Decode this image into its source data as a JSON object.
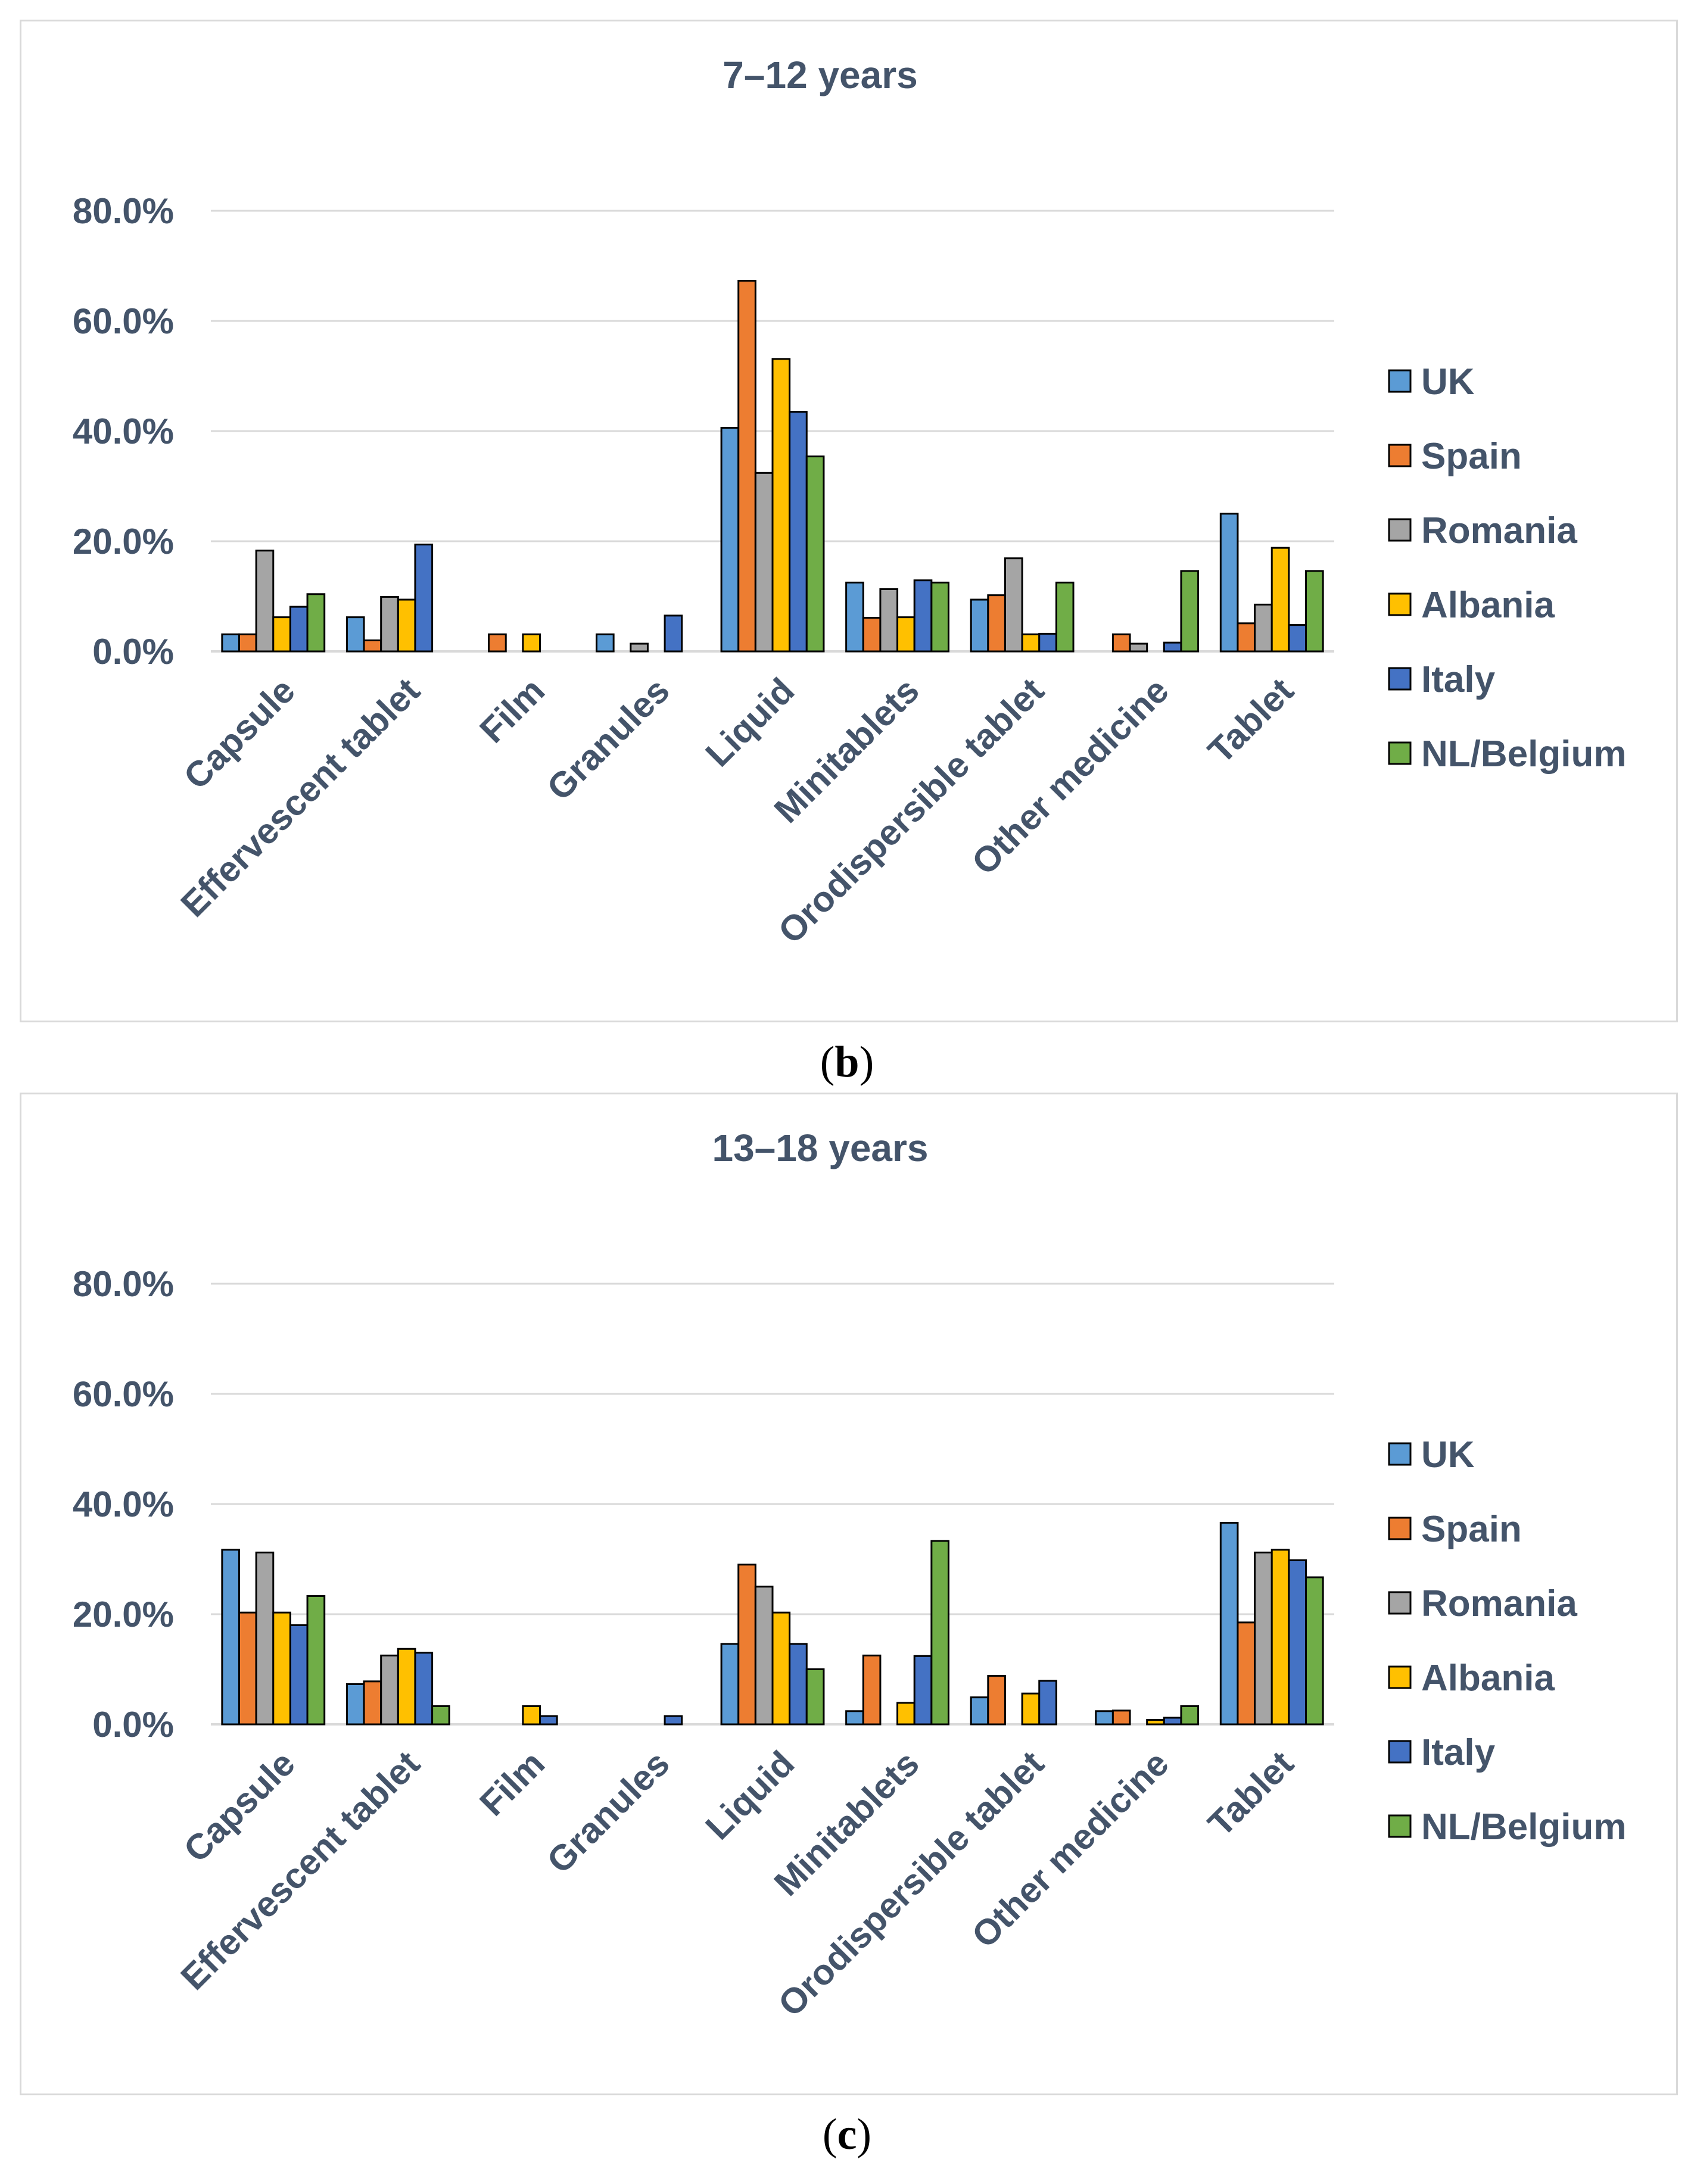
{
  "captions": {
    "b": {
      "open": "(",
      "letter": "b",
      "close": ")"
    },
    "c": {
      "open": "(",
      "letter": "c",
      "close": ")"
    }
  },
  "colors": {
    "text": "#44546a",
    "grid": "#d9d9d9",
    "border": "#000000",
    "series": [
      "#5b9bd5",
      "#ed7d31",
      "#a5a5a5",
      "#ffc000",
      "#4472c4",
      "#70ad47"
    ]
  },
  "chart_data": [
    {
      "type": "bar",
      "title": "7–12 years",
      "xlabel": "",
      "ylabel": "",
      "ylim": [
        0,
        0.8
      ],
      "yticks": [
        0,
        0.2,
        0.4,
        0.6,
        0.8
      ],
      "ytick_labels": [
        "0.0%",
        "20.0%",
        "40.0%",
        "60.0%",
        "80.0%"
      ],
      "grid": true,
      "legend_position": "right",
      "categories": [
        "Capsule",
        "Effervescent tablet",
        "Film",
        "Granules",
        "Liquid",
        "Minitablets",
        "Orodispersible tablet",
        "Other medicine",
        "Tablet"
      ],
      "series": [
        {
          "name": "UK",
          "values": [
            0.031,
            0.062,
            0.0,
            0.031,
            0.406,
            0.125,
            0.094,
            0.0,
            0.25
          ]
        },
        {
          "name": "Spain",
          "values": [
            0.031,
            0.02,
            0.031,
            0.0,
            0.673,
            0.061,
            0.102,
            0.031,
            0.051
          ]
        },
        {
          "name": "Romania",
          "values": [
            0.183,
            0.099,
            0.0,
            0.014,
            0.324,
            0.113,
            0.169,
            0.014,
            0.085
          ]
        },
        {
          "name": "Albania",
          "values": [
            0.062,
            0.094,
            0.031,
            0.0,
            0.531,
            0.062,
            0.031,
            0.0,
            0.188
          ]
        },
        {
          "name": "Italy",
          "values": [
            0.081,
            0.194,
            0.0,
            0.065,
            0.435,
            0.129,
            0.032,
            0.016,
            0.048
          ]
        },
        {
          "name": "NL/Belgium",
          "values": [
            0.104,
            0.0,
            0.0,
            0.0,
            0.354,
            0.125,
            0.125,
            0.146,
            0.146
          ]
        }
      ]
    },
    {
      "type": "bar",
      "title": "13–18 years",
      "xlabel": "",
      "ylabel": "",
      "ylim": [
        0,
        0.8
      ],
      "yticks": [
        0,
        0.2,
        0.4,
        0.6,
        0.8
      ],
      "ytick_labels": [
        "0.0%",
        "20.0%",
        "40.0%",
        "60.0%",
        "80.0%"
      ],
      "grid": true,
      "legend_position": "right",
      "categories": [
        "Capsule",
        "Effervescent tablet",
        "Film",
        "Granules",
        "Liquid",
        "Minitablets",
        "Orodispersible tablet",
        "Other medicine",
        "Tablet"
      ],
      "series": [
        {
          "name": "UK",
          "values": [
            0.317,
            0.073,
            0.0,
            0.0,
            0.146,
            0.024,
            0.049,
            0.024,
            0.366
          ]
        },
        {
          "name": "Spain",
          "values": [
            0.203,
            0.078,
            0.0,
            0.0,
            0.29,
            0.125,
            0.088,
            0.025,
            0.185
          ]
        },
        {
          "name": "Romania",
          "values": [
            0.312,
            0.125,
            0.0,
            0.0,
            0.25,
            0.0,
            0.0,
            0.0,
            0.312
          ]
        },
        {
          "name": "Albania",
          "values": [
            0.203,
            0.137,
            0.033,
            0.0,
            0.203,
            0.039,
            0.056,
            0.008,
            0.317
          ]
        },
        {
          "name": "Italy",
          "values": [
            0.18,
            0.13,
            0.015,
            0.015,
            0.146,
            0.124,
            0.079,
            0.012,
            0.298
          ]
        },
        {
          "name": "NL/Belgium",
          "values": [
            0.233,
            0.033,
            0.0,
            0.0,
            0.1,
            0.333,
            0.0,
            0.033,
            0.267
          ]
        }
      ]
    }
  ]
}
